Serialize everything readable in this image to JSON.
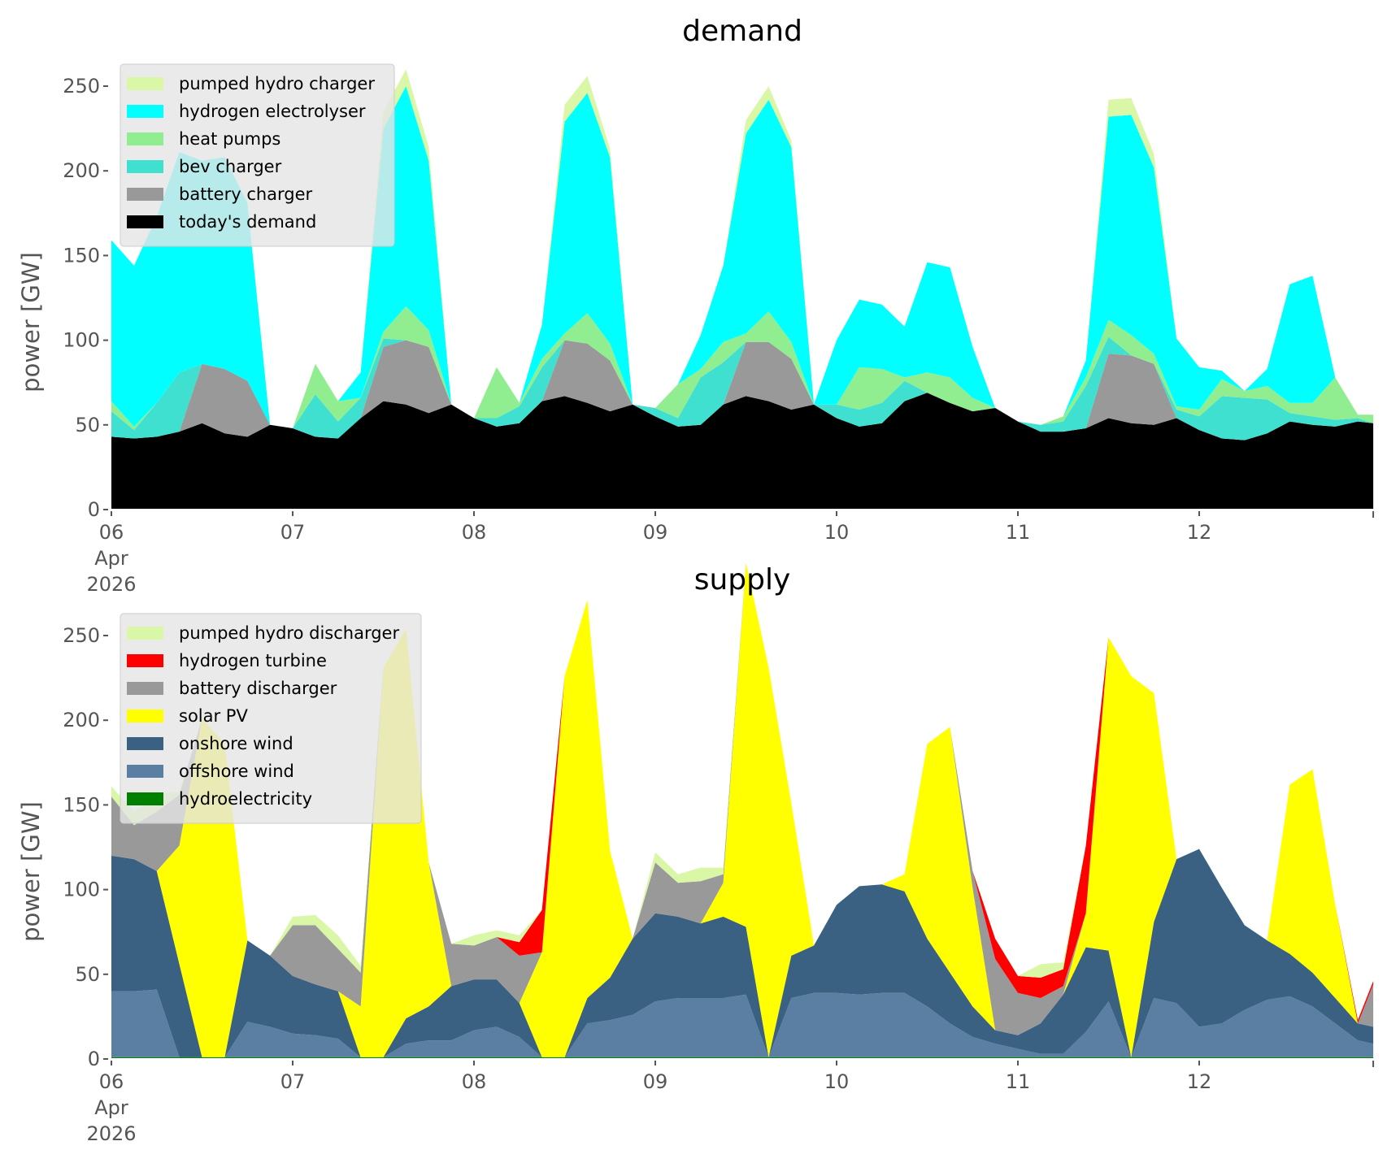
{
  "chart_data": [
    {
      "type": "area",
      "stacked": true,
      "title": "demand",
      "ylabel": "power [GW]",
      "xlabel": "",
      "ylim": [
        0,
        260
      ],
      "yticks": [
        0,
        50,
        100,
        150,
        200,
        250
      ],
      "xlim_days": [
        0,
        6.96
      ],
      "x_step_hours": 3,
      "xtick_labels": [
        "06\nApr\n2026",
        "07",
        "08",
        "09",
        "10",
        "11",
        "12"
      ],
      "legend_position": "top-left",
      "grid": false,
      "series": [
        {
          "name": "today's demand",
          "color": "#000000",
          "values": [
            43,
            42,
            43,
            46,
            51,
            45,
            43,
            50,
            48,
            43,
            42,
            54,
            64,
            62,
            57,
            62,
            54,
            49,
            51,
            64,
            67,
            63,
            58,
            62,
            55,
            49,
            50,
            62,
            67,
            64,
            59,
            62,
            54,
            49,
            51,
            64,
            69,
            63,
            58,
            60,
            52,
            46,
            46,
            48,
            54,
            51,
            50,
            54,
            47,
            42,
            41,
            45,
            52,
            50,
            49,
            52,
            51,
            51
          ]
        },
        {
          "name": "battery charger",
          "color": "#999999",
          "values": [
            0,
            0,
            0,
            0,
            35,
            38,
            33,
            0,
            0,
            0,
            0,
            0,
            32,
            38,
            39,
            0,
            0,
            0,
            0,
            0,
            33,
            35,
            30,
            0,
            0,
            0,
            0,
            0,
            32,
            35,
            30,
            0,
            0,
            0,
            0,
            0,
            0,
            0,
            0,
            0,
            0,
            0,
            0,
            0,
            38,
            40,
            36,
            0,
            0,
            0,
            0,
            0,
            0,
            0,
            0,
            0,
            0,
            0
          ]
        },
        {
          "name": "bev charger",
          "color": "#40e0d0",
          "values": [
            15,
            5,
            20,
            35,
            0,
            0,
            0,
            0,
            0,
            25,
            10,
            12,
            5,
            0,
            0,
            0,
            0,
            5,
            10,
            20,
            0,
            0,
            0,
            0,
            5,
            5,
            28,
            25,
            0,
            0,
            0,
            0,
            8,
            10,
            12,
            12,
            0,
            0,
            0,
            0,
            0,
            4,
            6,
            25,
            10,
            0,
            0,
            5,
            8,
            25,
            25,
            20,
            5,
            5,
            4,
            2,
            0,
            0
          ]
        },
        {
          "name": "heat pumps",
          "color": "#90ee90",
          "values": [
            6,
            2,
            0,
            0,
            0,
            0,
            0,
            0,
            0,
            18,
            12,
            0,
            4,
            20,
            10,
            0,
            0,
            30,
            2,
            5,
            4,
            18,
            10,
            0,
            0,
            20,
            5,
            12,
            5,
            18,
            10,
            0,
            0,
            25,
            20,
            2,
            12,
            15,
            8,
            0,
            0,
            0,
            3,
            5,
            10,
            12,
            6,
            2,
            4,
            10,
            4,
            8,
            6,
            8,
            25,
            2,
            5,
            6
          ]
        },
        {
          "name": "hydrogen electrolyser",
          "color": "#00ffff",
          "values": [
            95,
            95,
            110,
            130,
            120,
            125,
            105,
            0,
            0,
            0,
            0,
            15,
            120,
            130,
            100,
            0,
            0,
            0,
            0,
            20,
            125,
            130,
            110,
            0,
            0,
            0,
            20,
            45,
            118,
            125,
            115,
            0,
            38,
            40,
            38,
            30,
            65,
            65,
            30,
            0,
            0,
            0,
            0,
            10,
            120,
            130,
            110,
            40,
            25,
            5,
            0,
            10,
            70,
            75,
            0,
            0,
            0,
            0
          ]
        },
        {
          "name": "pumped hydro charger",
          "color": "#d9f7a6",
          "values": [
            0,
            0,
            0,
            0,
            0,
            0,
            0,
            0,
            0,
            0,
            0,
            0,
            10,
            10,
            8,
            0,
            0,
            0,
            0,
            0,
            10,
            10,
            5,
            0,
            0,
            0,
            0,
            0,
            8,
            8,
            4,
            0,
            0,
            0,
            0,
            0,
            0,
            0,
            0,
            0,
            0,
            0,
            0,
            0,
            10,
            10,
            8,
            0,
            0,
            0,
            0,
            0,
            0,
            0,
            0,
            0,
            0,
            0
          ]
        }
      ]
    },
    {
      "type": "area",
      "stacked": true,
      "title": "supply",
      "ylabel": "power [GW]",
      "xlabel": "",
      "ylim": [
        0,
        260
      ],
      "yticks": [
        0,
        50,
        100,
        150,
        200,
        250
      ],
      "xlim_days": [
        0,
        6.96
      ],
      "x_step_hours": 3,
      "xtick_labels": [
        "06\nApr\n2026",
        "07",
        "08",
        "09",
        "10",
        "11",
        "12"
      ],
      "legend_position": "top-left",
      "grid": false,
      "series": [
        {
          "name": "hydroelectricity",
          "color": "#008000",
          "values": [
            1,
            1,
            1,
            1,
            1,
            1,
            1,
            1,
            1,
            1,
            1,
            1,
            1,
            1,
            1,
            1,
            1,
            1,
            1,
            1,
            1,
            1,
            1,
            1,
            1,
            1,
            1,
            1,
            1,
            1,
            1,
            1,
            1,
            1,
            1,
            1,
            1,
            1,
            1,
            1,
            1,
            1,
            1,
            1,
            1,
            1,
            1,
            1,
            1,
            1,
            1,
            1,
            1,
            1,
            1,
            1,
            1,
            1
          ]
        },
        {
          "name": "offshore wind",
          "color": "#5b7fa3",
          "values": [
            39,
            39,
            40,
            0,
            0,
            0,
            21,
            18,
            14,
            13,
            11,
            0,
            0,
            8,
            10,
            10,
            16,
            18,
            12,
            0,
            0,
            20,
            22,
            25,
            33,
            35,
            35,
            35,
            37,
            0,
            35,
            38,
            38,
            37,
            38,
            38,
            30,
            20,
            12,
            8,
            5,
            2,
            2,
            15,
            33,
            0,
            35,
            32,
            18,
            20,
            28,
            34,
            36,
            30,
            20,
            10,
            8,
            14
          ]
        },
        {
          "name": "onshore wind",
          "color": "#3b6182",
          "values": [
            80,
            78,
            70,
            55,
            0,
            0,
            48,
            42,
            34,
            30,
            28,
            0,
            0,
            15,
            20,
            32,
            30,
            28,
            20,
            0,
            0,
            15,
            25,
            45,
            52,
            48,
            44,
            48,
            40,
            0,
            25,
            28,
            52,
            64,
            64,
            60,
            40,
            30,
            18,
            8,
            8,
            18,
            35,
            50,
            30,
            0,
            45,
            85,
            105,
            80,
            50,
            35,
            25,
            20,
            15,
            10,
            10,
            12
          ]
        },
        {
          "name": "solar PV",
          "color": "#ffff00",
          "values": [
            0,
            0,
            0,
            70,
            200,
            185,
            0,
            0,
            0,
            0,
            0,
            30,
            230,
            230,
            85,
            0,
            0,
            0,
            0,
            62,
            225,
            235,
            75,
            0,
            0,
            0,
            0,
            20,
            215,
            230,
            90,
            0,
            0,
            0,
            0,
            10,
            115,
            145,
            70,
            0,
            0,
            0,
            0,
            20,
            185,
            225,
            135,
            0,
            0,
            0,
            0,
            0,
            100,
            120,
            55,
            0,
            0,
            0
          ]
        },
        {
          "name": "battery discharger",
          "color": "#999999",
          "values": [
            35,
            20,
            35,
            30,
            0,
            0,
            0,
            0,
            30,
            35,
            25,
            20,
            0,
            0,
            0,
            25,
            20,
            25,
            28,
            0,
            0,
            0,
            0,
            0,
            30,
            20,
            25,
            5,
            0,
            0,
            0,
            0,
            0,
            0,
            0,
            0,
            0,
            0,
            10,
            42,
            25,
            15,
            5,
            0,
            0,
            0,
            0,
            0,
            0,
            0,
            0,
            0,
            0,
            0,
            0,
            0,
            25,
            26
          ]
        },
        {
          "name": "hydrogen turbine",
          "color": "#ff0000",
          "values": [
            0,
            0,
            0,
            0,
            0,
            0,
            0,
            0,
            0,
            0,
            0,
            0,
            0,
            0,
            0,
            0,
            0,
            0,
            8,
            25,
            0,
            0,
            0,
            0,
            0,
            0,
            0,
            0,
            0,
            0,
            0,
            0,
            0,
            0,
            0,
            0,
            0,
            0,
            0,
            12,
            10,
            12,
            10,
            40,
            0,
            0,
            0,
            0,
            0,
            0,
            0,
            0,
            0,
            0,
            0,
            2,
            2,
            0
          ]
        },
        {
          "name": "pumped hydro discharger",
          "color": "#d9f7a6",
          "values": [
            6,
            8,
            10,
            2,
            0,
            0,
            0,
            0,
            5,
            6,
            8,
            4,
            0,
            0,
            0,
            0,
            6,
            4,
            4,
            0,
            0,
            0,
            0,
            0,
            6,
            5,
            8,
            4,
            0,
            0,
            0,
            0,
            0,
            0,
            0,
            0,
            0,
            0,
            0,
            0,
            0,
            8,
            4,
            0,
            0,
            0,
            0,
            0,
            0,
            0,
            0,
            0,
            0,
            0,
            0,
            0,
            0,
            0
          ]
        }
      ]
    }
  ]
}
